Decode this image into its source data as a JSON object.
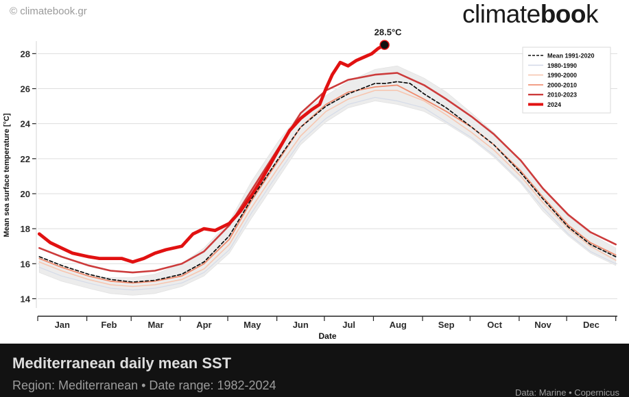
{
  "header": {
    "credit": "© climatebook.gr",
    "brand_light": "climate",
    "brand_bold": "boo",
    "brand_end": "k"
  },
  "footer": {
    "title": "Mediterranean daily mean SST",
    "subtitle": "Region: Mediterranean • Date range: 1982-2024",
    "source": "Data: Marine • Copernicus"
  },
  "colors": {
    "s1980": "#d5dbe8",
    "s1990": "#f7c6b0",
    "s2000": "#ef8a6c",
    "s2010": "#cc3b3b",
    "s2024": "#e11111",
    "mean": "#111111",
    "band": "#ececec"
  },
  "chart_data": {
    "type": "line",
    "xlabel": "Date",
    "ylabel": "Mean sea surface temperature [°C]",
    "ylim": [
      13,
      29.5
    ],
    "xlim": [
      0,
      366
    ],
    "yticks": [
      14,
      16,
      18,
      20,
      22,
      24,
      26,
      28
    ],
    "grid": "horizontal",
    "legend_position": "top-right",
    "months": [
      "Jan",
      "Feb",
      "Mar",
      "Apr",
      "May",
      "Jun",
      "Jul",
      "Aug",
      "Sep",
      "Oct",
      "Nov",
      "Dec"
    ],
    "month_days": [
      0,
      31,
      59,
      90,
      120,
      151,
      181,
      212,
      243,
      273,
      304,
      334,
      365
    ],
    "band": {
      "x": [
        1,
        15,
        32,
        46,
        60,
        74,
        91,
        105,
        121,
        135,
        152,
        166,
        182,
        196,
        213,
        227,
        244,
        258,
        274,
        288,
        305,
        319,
        335,
        349,
        365
      ],
      "upper": [
        16.3,
        15.8,
        15.3,
        15.2,
        15.2,
        15.4,
        16.0,
        16.9,
        18.4,
        20.7,
        23.0,
        24.6,
        25.6,
        26.4,
        27.1,
        27.3,
        26.6,
        25.8,
        24.6,
        23.5,
        21.9,
        20.3,
        18.7,
        17.7,
        16.9
      ],
      "lower": [
        15.5,
        15.0,
        14.6,
        14.3,
        14.2,
        14.3,
        14.7,
        15.3,
        16.6,
        18.6,
        20.9,
        22.8,
        24.1,
        24.9,
        25.3,
        25.1,
        24.7,
        24.0,
        23.1,
        22.1,
        20.6,
        19.0,
        17.6,
        16.6,
        15.9
      ]
    },
    "series": [
      {
        "name": "Mean 1991-2020",
        "key": "mean",
        "dashed": true,
        "x": [
          1,
          15,
          32,
          46,
          60,
          74,
          91,
          105,
          121,
          135,
          152,
          166,
          182,
          196,
          213,
          220,
          227,
          235,
          244,
          258,
          274,
          288,
          305,
          319,
          335,
          349,
          365
        ],
        "y": [
          16.4,
          15.9,
          15.4,
          15.1,
          14.95,
          15.05,
          15.4,
          16.1,
          17.6,
          19.7,
          22.0,
          23.8,
          25.0,
          25.7,
          26.3,
          26.3,
          26.4,
          26.3,
          25.7,
          24.9,
          23.8,
          22.8,
          21.2,
          19.7,
          18.1,
          17.1,
          16.4
        ]
      },
      {
        "name": "1980-1990",
        "key": "s1980",
        "dashed": false,
        "x": [
          1,
          15,
          32,
          46,
          60,
          74,
          91,
          105,
          121,
          135,
          152,
          166,
          182,
          196,
          213,
          227,
          244,
          258,
          274,
          288,
          305,
          319,
          335,
          349,
          365
        ],
        "y": [
          15.8,
          15.3,
          14.9,
          14.6,
          14.5,
          14.6,
          14.9,
          15.5,
          16.8,
          18.9,
          21.2,
          23.0,
          24.3,
          25.1,
          25.5,
          25.3,
          24.9,
          24.1,
          23.2,
          22.2,
          20.7,
          19.2,
          17.7,
          16.7,
          16.0
        ]
      },
      {
        "name": "1990-2000",
        "key": "s1990",
        "dashed": false,
        "x": [
          1,
          15,
          32,
          46,
          60,
          74,
          91,
          105,
          121,
          135,
          152,
          166,
          182,
          196,
          213,
          227,
          244,
          258,
          274,
          288,
          305,
          319,
          335,
          349,
          365
        ],
        "y": [
          16.1,
          15.6,
          15.1,
          14.8,
          14.7,
          14.8,
          15.1,
          15.7,
          17.1,
          19.2,
          21.5,
          23.3,
          24.7,
          25.4,
          25.9,
          25.9,
          25.3,
          24.5,
          23.5,
          22.5,
          21.0,
          19.5,
          18.0,
          17.0,
          16.2
        ]
      },
      {
        "name": "2000-2010",
        "key": "s2000",
        "dashed": false,
        "x": [
          1,
          15,
          32,
          46,
          60,
          74,
          91,
          105,
          121,
          135,
          152,
          166,
          182,
          196,
          213,
          227,
          244,
          258,
          274,
          288,
          305,
          319,
          335,
          349,
          365
        ],
        "y": [
          16.3,
          15.8,
          15.3,
          15.0,
          14.9,
          15.0,
          15.3,
          16.0,
          17.4,
          19.6,
          21.9,
          23.8,
          25.1,
          25.8,
          26.1,
          26.2,
          25.4,
          24.7,
          23.8,
          22.8,
          21.3,
          19.8,
          18.2,
          17.2,
          16.5
        ]
      },
      {
        "name": "2010-2023",
        "key": "s2010",
        "dashed": false,
        "x": [
          1,
          15,
          32,
          46,
          60,
          74,
          91,
          105,
          121,
          135,
          152,
          166,
          182,
          196,
          213,
          227,
          244,
          258,
          274,
          288,
          305,
          319,
          335,
          349,
          365
        ],
        "y": [
          16.9,
          16.4,
          15.9,
          15.6,
          15.5,
          15.6,
          16.0,
          16.7,
          18.2,
          20.2,
          22.6,
          24.6,
          25.9,
          26.5,
          26.8,
          26.9,
          26.2,
          25.4,
          24.4,
          23.4,
          21.9,
          20.3,
          18.8,
          17.8,
          17.1
        ]
      },
      {
        "name": "2024",
        "key": "s2024",
        "dashed": false,
        "bold": true,
        "x": [
          1,
          8,
          15,
          22,
          32,
          39,
          46,
          53,
          60,
          67,
          74,
          81,
          91,
          98,
          105,
          112,
          121,
          128,
          135,
          142,
          152,
          159,
          166,
          173,
          178,
          182,
          186,
          191,
          196,
          201,
          206,
          211,
          215,
          219
        ],
        "y": [
          17.7,
          17.2,
          16.9,
          16.6,
          16.4,
          16.3,
          16.3,
          16.3,
          16.1,
          16.3,
          16.6,
          16.8,
          17.0,
          17.7,
          18.0,
          17.9,
          18.3,
          19.0,
          19.9,
          20.9,
          22.5,
          23.6,
          24.3,
          24.8,
          25.1,
          26.0,
          26.8,
          27.5,
          27.3,
          27.6,
          27.8,
          28.0,
          28.3,
          28.5
        ]
      }
    ],
    "annotations": [
      {
        "label": "28.5°C",
        "x": 219,
        "y": 28.5
      }
    ]
  }
}
